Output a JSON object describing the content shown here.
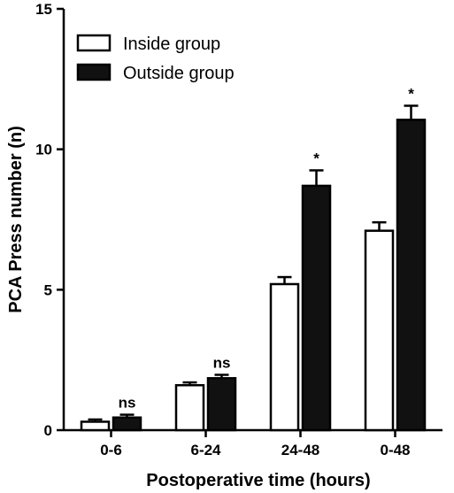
{
  "chart_data": {
    "type": "bar",
    "xlabel": "Postoperative time (hours)",
    "ylabel": "PCA Press number (n)",
    "ylim": [
      0,
      15
    ],
    "yticks": [
      "0",
      "5",
      "10",
      "15"
    ],
    "categories": [
      "0-6",
      "6-24",
      "24-48",
      "0-48"
    ],
    "series": [
      {
        "name": "Inside group",
        "values": [
          0.3,
          1.6,
          5.2,
          7.1
        ],
        "errors": [
          0.08,
          0.1,
          0.25,
          0.3
        ],
        "fill": "#ffffff",
        "stroke": "#000000"
      },
      {
        "name": "Outside group",
        "values": [
          0.45,
          1.85,
          8.7,
          11.05
        ],
        "errors": [
          0.1,
          0.12,
          0.55,
          0.5
        ],
        "fill": "#111111",
        "stroke": "#000000"
      }
    ],
    "significance": [
      "ns",
      "ns",
      "*",
      "*"
    ],
    "legend_position": "top-left",
    "grid": false
  }
}
